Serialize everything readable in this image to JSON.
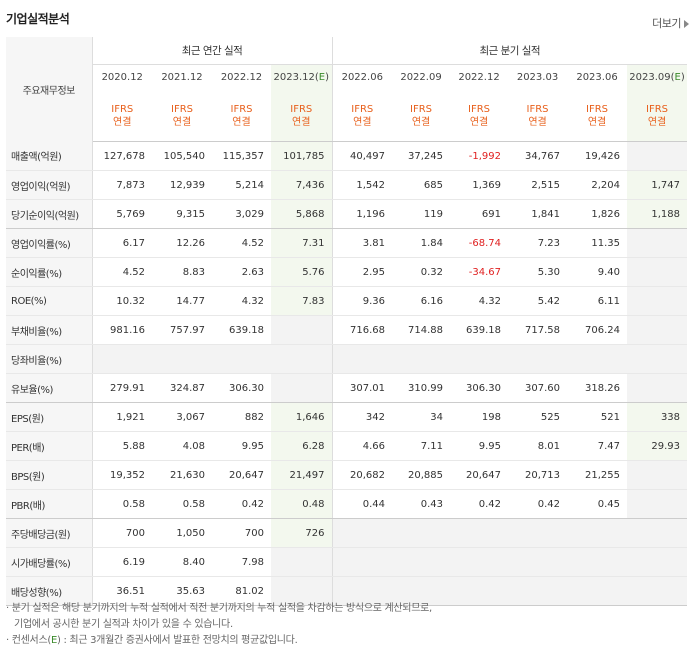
{
  "title": "기업실적분석",
  "more_label": "더보기",
  "corner_label": "주요재무정보",
  "annual_header": "최근 연간 실적",
  "quarter_header": "최근 분기 실적",
  "ifrs_label": [
    "IFRS",
    "연결"
  ],
  "periods": [
    "2020.12",
    "2021.12",
    "2022.12",
    "2023.12(E)",
    "2022.06",
    "2022.09",
    "2022.12",
    "2023.03",
    "2023.06",
    "2023.09(E)"
  ],
  "rows": [
    {
      "label": "매출액(억원)",
      "values": [
        "127,678",
        "105,540",
        "115,357",
        "101,785",
        "40,497",
        "37,245",
        "-1,992",
        "34,767",
        "19,426",
        ""
      ]
    },
    {
      "label": "영업이익(억원)",
      "values": [
        "7,873",
        "12,939",
        "5,214",
        "7,436",
        "1,542",
        "685",
        "1,369",
        "2,515",
        "2,204",
        "1,747"
      ]
    },
    {
      "label": "당기순이익(억원)",
      "values": [
        "5,769",
        "9,315",
        "3,029",
        "5,868",
        "1,196",
        "119",
        "691",
        "1,841",
        "1,826",
        "1,188"
      ]
    },
    {
      "label": "영업이익률(%)",
      "values": [
        "6.17",
        "12.26",
        "4.52",
        "7.31",
        "3.81",
        "1.84",
        "-68.74",
        "7.23",
        "11.35",
        ""
      ]
    },
    {
      "label": "순이익률(%)",
      "values": [
        "4.52",
        "8.83",
        "2.63",
        "5.76",
        "2.95",
        "0.32",
        "-34.67",
        "5.30",
        "9.40",
        ""
      ]
    },
    {
      "label": "ROE(%)",
      "values": [
        "10.32",
        "14.77",
        "4.32",
        "7.83",
        "9.36",
        "6.16",
        "4.32",
        "5.42",
        "6.11",
        ""
      ]
    },
    {
      "label": "부채비율(%)",
      "values": [
        "981.16",
        "757.97",
        "639.18",
        "",
        "716.68",
        "714.88",
        "639.18",
        "717.58",
        "706.24",
        ""
      ]
    },
    {
      "label": "당좌비율(%)",
      "values": [
        "",
        "",
        "",
        "",
        "",
        "",
        "",
        "",
        "",
        ""
      ]
    },
    {
      "label": "유보율(%)",
      "values": [
        "279.91",
        "324.87",
        "306.30",
        "",
        "307.01",
        "310.99",
        "306.30",
        "307.60",
        "318.26",
        ""
      ]
    },
    {
      "label": "EPS(원)",
      "values": [
        "1,921",
        "3,067",
        "882",
        "1,646",
        "342",
        "34",
        "198",
        "525",
        "521",
        "338"
      ]
    },
    {
      "label": "PER(배)",
      "values": [
        "5.88",
        "4.08",
        "9.95",
        "6.28",
        "4.66",
        "7.11",
        "9.95",
        "8.01",
        "7.47",
        "29.93"
      ]
    },
    {
      "label": "BPS(원)",
      "values": [
        "19,352",
        "21,630",
        "20,647",
        "21,497",
        "20,682",
        "20,885",
        "20,647",
        "20,713",
        "21,255",
        ""
      ]
    },
    {
      "label": "PBR(배)",
      "values": [
        "0.58",
        "0.58",
        "0.42",
        "0.48",
        "0.44",
        "0.43",
        "0.42",
        "0.42",
        "0.45",
        ""
      ]
    },
    {
      "label": "주당배당금(원)",
      "values": [
        "700",
        "1,050",
        "700",
        "726",
        "",
        "",
        "",
        "",
        "",
        ""
      ]
    },
    {
      "label": "시가배당률(%)",
      "values": [
        "6.19",
        "8.40",
        "7.98",
        "",
        "",
        "",
        "",
        "",
        "",
        ""
      ]
    },
    {
      "label": "배당성향(%)",
      "values": [
        "36.51",
        "35.63",
        "81.02",
        "",
        "",
        "",
        "",
        "",
        "",
        ""
      ]
    }
  ],
  "notes": {
    "line1": "· 분기 실적은 해당 분기까지의 누적 실적에서 직전 분기까지의 누적 실적을 차감하는 방식으로 계산되므로,",
    "line2": "기업에서 공시한 분기 실적과 차이가 있을 수 있습니다.",
    "line3_prefix": "· 컨센서스(",
    "line3_e": "E",
    "line3_suffix": ") : 최근 3개월간 증권사에서 발표한 전망치의 평균값입니다."
  },
  "colors": {
    "ifrs": "#e8601c",
    "negative": "#e02020",
    "estimate_bg": "#f3f8ee",
    "estimate_text": "#3a8a2a"
  }
}
